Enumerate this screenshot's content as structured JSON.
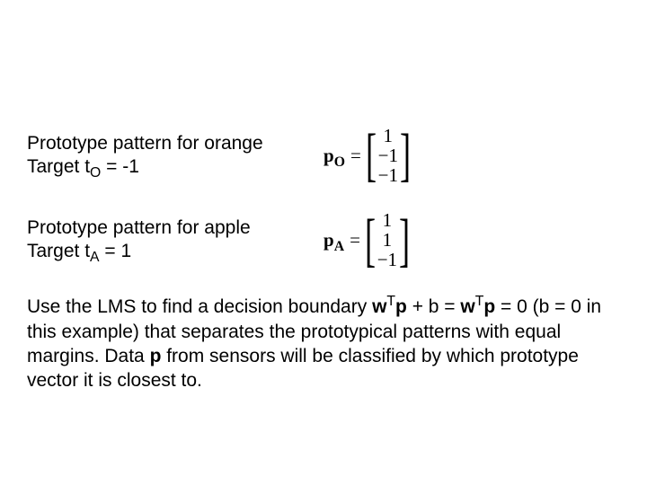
{
  "orange": {
    "line1": "Prototype pattern for orange",
    "target_label": "Target t",
    "target_sub": "O",
    "target_rest": " = -1",
    "math_lhs_vec": "p",
    "math_lhs_sub": "O",
    "eq": "=",
    "vec": [
      "1",
      "−1",
      "−1"
    ]
  },
  "apple": {
    "line1": "Prototype pattern for apple",
    "target_label": "Target t",
    "target_sub": "A",
    "target_rest": " = 1",
    "math_lhs_vec": "p",
    "math_lhs_sub": "A",
    "eq": "=",
    "vec": [
      "1",
      "1",
      "−1"
    ]
  },
  "paragraph": {
    "p1a": "Use the LMS to find a decision boundary ",
    "w1": "w",
    "T1": "T",
    "p1b": "p",
    "p1c": " + b = ",
    "w2": "w",
    "T2": "T",
    "p2b": "p",
    "p1d": " = 0 (b = 0 in this example) that separates the prototypical patterns with equal margins. Data ",
    "pd": "p",
    "p1e": " from sensors will be classified by which prototype vector it is closest to."
  },
  "colors": {
    "text": "#000000",
    "background": "#ffffff"
  }
}
